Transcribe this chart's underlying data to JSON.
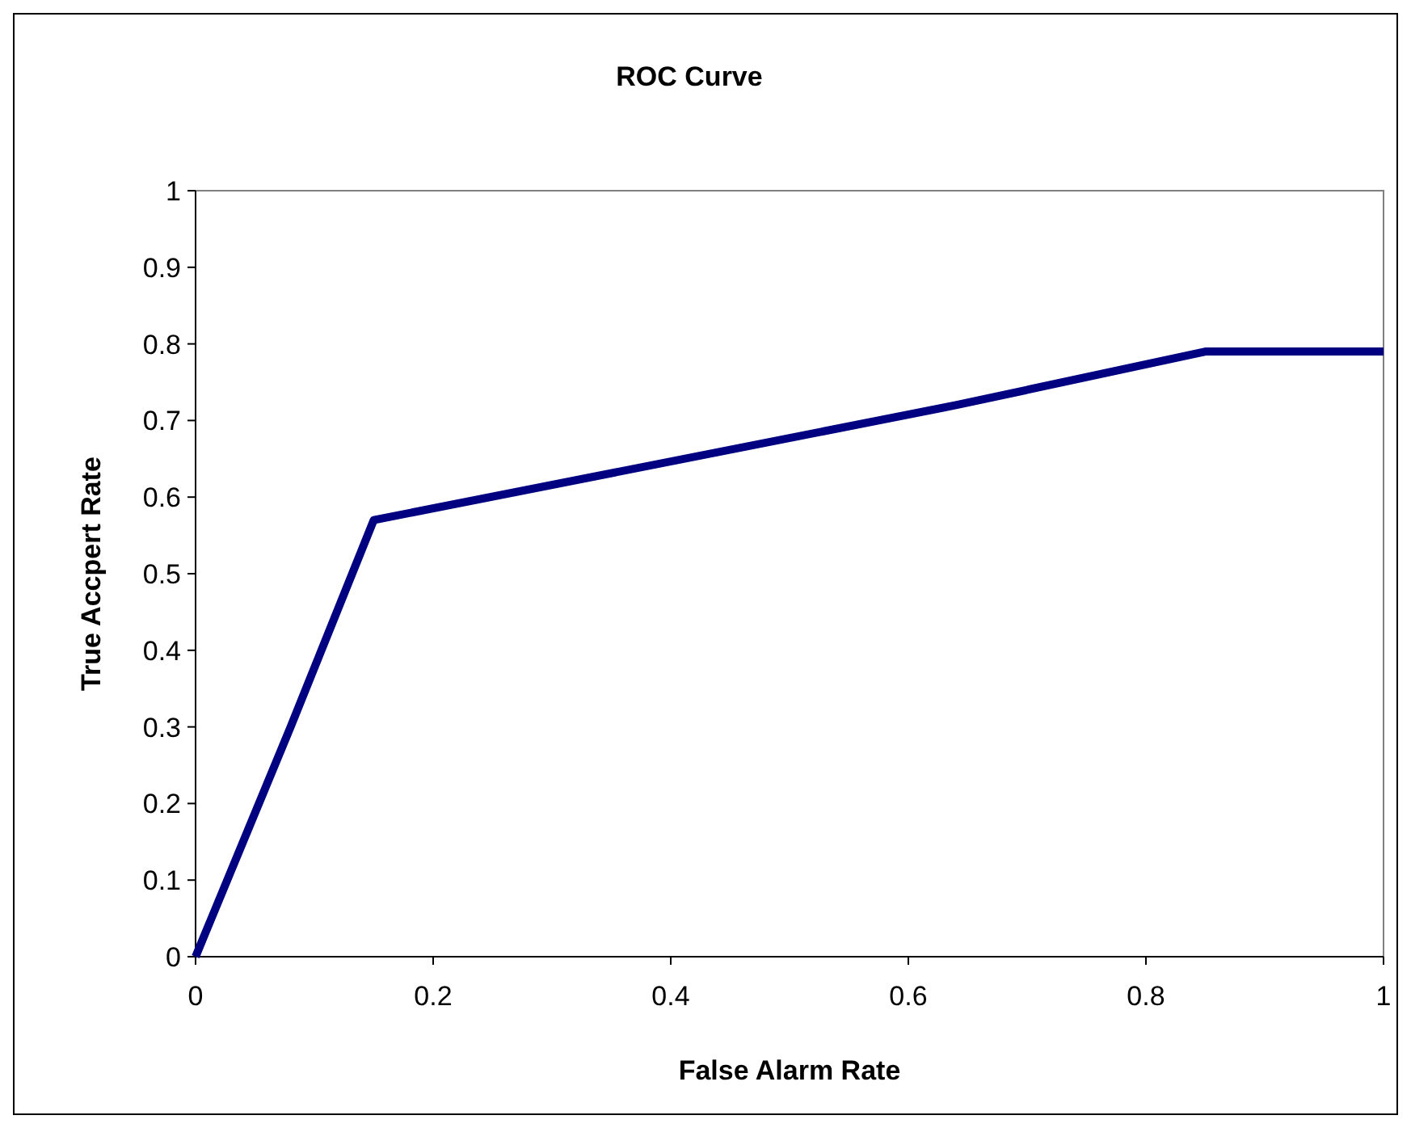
{
  "chart_data": {
    "type": "line",
    "title": "ROC Curve",
    "xlabel": "False Alarm Rate",
    "ylabel": "True Accpert Rate",
    "x": [
      0,
      0.08,
      0.15,
      0.64,
      0.85,
      1
    ],
    "series": [
      {
        "color": "#000080",
        "values": [
          0,
          0.3,
          0.57,
          0.72,
          0.79,
          0.79
        ]
      }
    ],
    "xlim": [
      0,
      1
    ],
    "xticks": [
      0,
      0.2,
      0.4,
      0.6,
      0.8,
      1
    ],
    "ylim": [
      0,
      1
    ],
    "yticks": [
      0,
      0.1,
      0.2,
      0.3,
      0.4,
      0.5,
      0.6,
      0.7,
      0.8,
      0.9,
      1
    ],
    "grid": false,
    "marker": "none",
    "line_style": "solid"
  }
}
